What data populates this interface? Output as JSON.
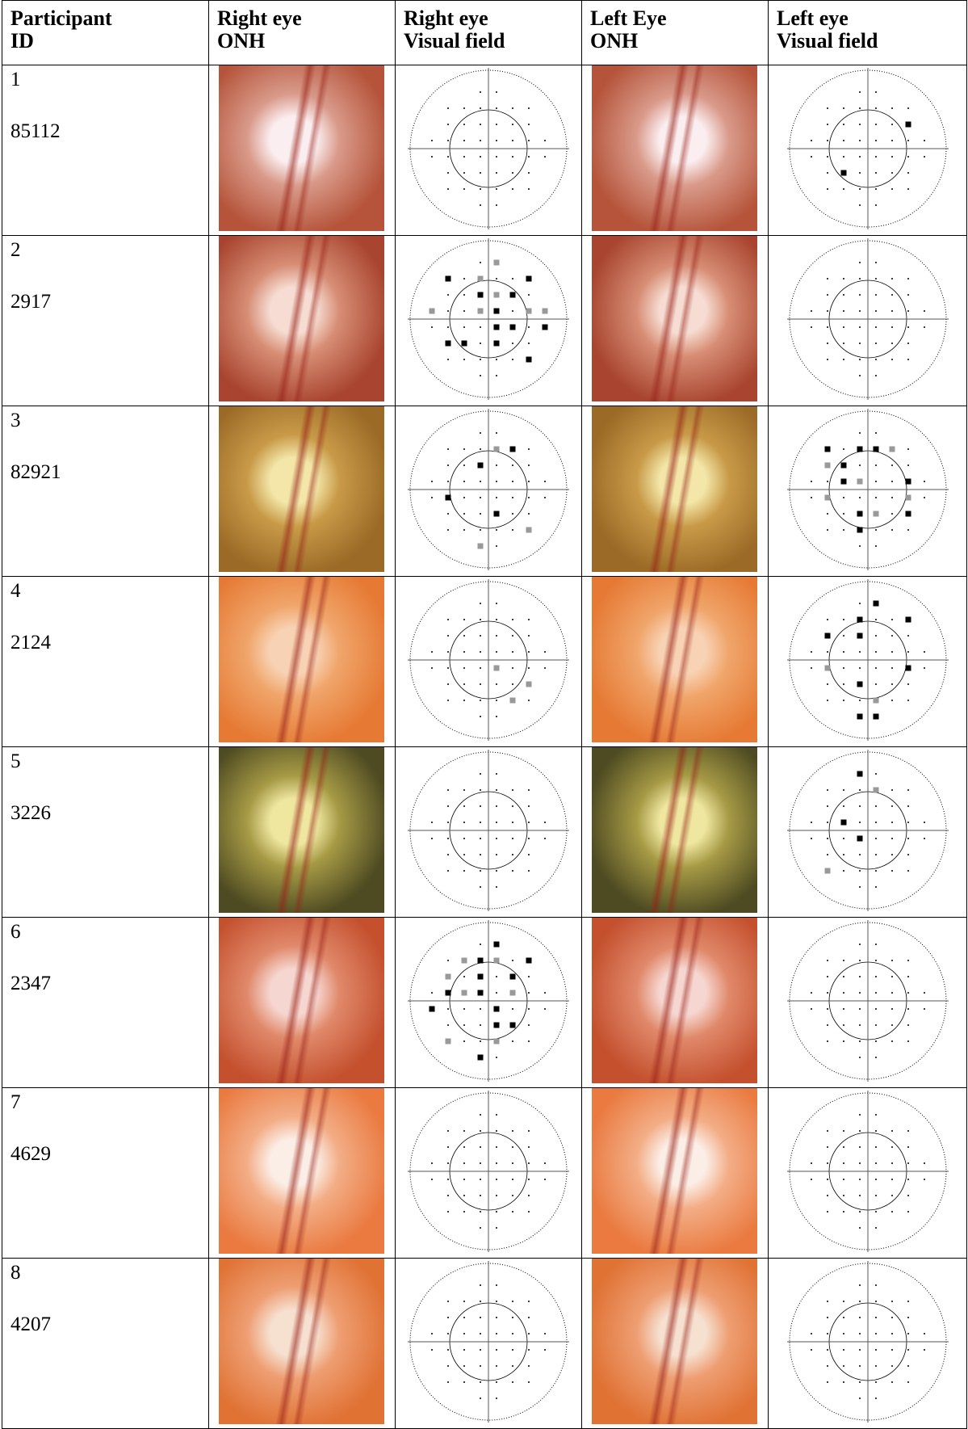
{
  "table": {
    "header": [
      [
        "Participant",
        "ID"
      ],
      [
        "Right eye",
        "ONH"
      ],
      [
        "Right eye",
        "Visual field"
      ],
      [
        "Left Eye",
        "ONH"
      ],
      [
        "Left eye",
        "Visual field"
      ]
    ],
    "rows": [
      [
        "1",
        "85112"
      ],
      [
        "2",
        "2917"
      ],
      [
        "3",
        "82921"
      ],
      [
        "4",
        "2124"
      ],
      [
        "5",
        "3226"
      ],
      [
        "6",
        "2347"
      ],
      [
        "7",
        "4629"
      ],
      [
        "8",
        "4207"
      ]
    ]
  }
}
